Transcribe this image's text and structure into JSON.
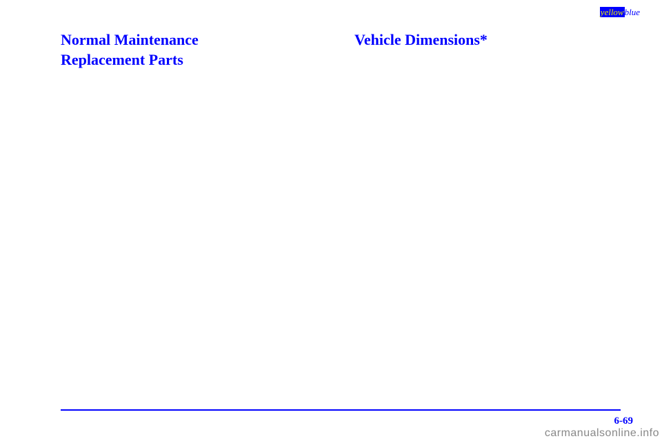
{
  "topLabel": {
    "yellowText": "yellow",
    "blueText": "blue"
  },
  "leftColumn": {
    "headingLine1": "Normal Maintenance",
    "headingLine2": "Replacement Parts"
  },
  "rightColumn": {
    "heading": "Vehicle Dimensions*"
  },
  "footer": {
    "pageNumber": "6-69"
  },
  "watermark": "carmanualsonline.info",
  "colors": {
    "primary": "#0000ff",
    "accent": "#e8e800",
    "watermark": "#888888",
    "background": "#ffffff"
  }
}
